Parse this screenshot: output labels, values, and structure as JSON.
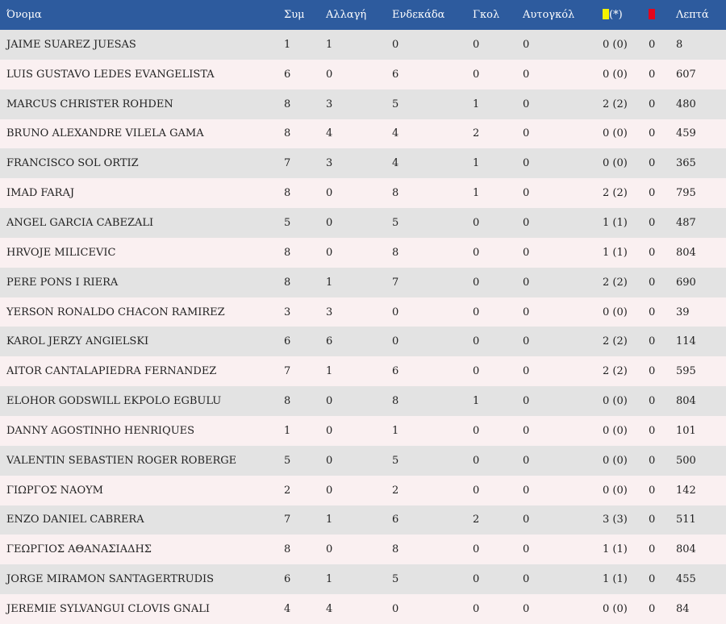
{
  "colors": {
    "header_bg": "#2d5b9e",
    "row_odd": "#e3e3e3",
    "row_even": "#faf0f1",
    "yellow_card": "#f5f200",
    "red_card": "#e3061c"
  },
  "headers": {
    "name": "Όνομα",
    "apps": "Συμ",
    "subs": "Αλλαγή",
    "starts": "Ενδεκάδα",
    "goals": "Γκολ",
    "own_goals": "Αυτογκόλ",
    "yellow_suffix": "(*)",
    "minutes": "Λεπτά"
  },
  "icons": {
    "yellow": "yellow-card-icon",
    "red": "red-card-icon"
  },
  "rows": [
    {
      "name": "JAIME SUAREZ JUESAS",
      "apps": "1",
      "subs": "1",
      "starts": "0",
      "goals": "0",
      "own": "0",
      "yellow": "0 (0)",
      "red": "0",
      "mins": "8"
    },
    {
      "name": "LUIS GUSTAVO LEDES EVANGELISTA",
      "apps": "6",
      "subs": "0",
      "starts": "6",
      "goals": "0",
      "own": "0",
      "yellow": "0 (0)",
      "red": "0",
      "mins": "607"
    },
    {
      "name": "MARCUS CHRISTER ROHDEN",
      "apps": "8",
      "subs": "3",
      "starts": "5",
      "goals": "1",
      "own": "0",
      "yellow": "2 (2)",
      "red": "0",
      "mins": "480"
    },
    {
      "name": "BRUNO ALEXANDRE VILELA GAMA",
      "apps": "8",
      "subs": "4",
      "starts": "4",
      "goals": "2",
      "own": "0",
      "yellow": "0 (0)",
      "red": "0",
      "mins": "459"
    },
    {
      "name": "FRANCISCO SOL ORTIZ",
      "apps": "7",
      "subs": "3",
      "starts": "4",
      "goals": "1",
      "own": "0",
      "yellow": "0 (0)",
      "red": "0",
      "mins": "365"
    },
    {
      "name": "IMAD FARAJ",
      "apps": "8",
      "subs": "0",
      "starts": "8",
      "goals": "1",
      "own": "0",
      "yellow": "2 (2)",
      "red": "0",
      "mins": "795"
    },
    {
      "name": "ANGEL GARCIA CABEZALI",
      "apps": "5",
      "subs": "0",
      "starts": "5",
      "goals": "0",
      "own": "0",
      "yellow": "1 (1)",
      "red": "0",
      "mins": "487"
    },
    {
      "name": "HRVOJE MILICEVIC",
      "apps": "8",
      "subs": "0",
      "starts": "8",
      "goals": "0",
      "own": "0",
      "yellow": "1 (1)",
      "red": "0",
      "mins": "804"
    },
    {
      "name": "PERE PONS I RIERA",
      "apps": "8",
      "subs": "1",
      "starts": "7",
      "goals": "0",
      "own": "0",
      "yellow": "2 (2)",
      "red": "0",
      "mins": "690"
    },
    {
      "name": "YERSON RONALDO CHACON RAMIREZ",
      "apps": "3",
      "subs": "3",
      "starts": "0",
      "goals": "0",
      "own": "0",
      "yellow": "0 (0)",
      "red": "0",
      "mins": "39"
    },
    {
      "name": "KAROL JERZY ANGIELSKI",
      "apps": "6",
      "subs": "6",
      "starts": "0",
      "goals": "0",
      "own": "0",
      "yellow": "2 (2)",
      "red": "0",
      "mins": "114"
    },
    {
      "name": "AITOR CANTALAPIEDRA FERNANDEZ",
      "apps": "7",
      "subs": "1",
      "starts": "6",
      "goals": "0",
      "own": "0",
      "yellow": "2 (2)",
      "red": "0",
      "mins": "595"
    },
    {
      "name": "ELOHOR GODSWILL EKPOLO EGBULU",
      "apps": "8",
      "subs": "0",
      "starts": "8",
      "goals": "1",
      "own": "0",
      "yellow": "0 (0)",
      "red": "0",
      "mins": "804"
    },
    {
      "name": "DANNY AGOSTINHO HENRIQUES",
      "apps": "1",
      "subs": "0",
      "starts": "1",
      "goals": "0",
      "own": "0",
      "yellow": "0 (0)",
      "red": "0",
      "mins": "101"
    },
    {
      "name": "VALENTIN SEBASTIEN ROGER ROBERGE",
      "apps": "5",
      "subs": "0",
      "starts": "5",
      "goals": "0",
      "own": "0",
      "yellow": "0 (0)",
      "red": "0",
      "mins": "500"
    },
    {
      "name": "ΓΙΩΡΓΟΣ ΝΑΟΥΜ",
      "apps": "2",
      "subs": "0",
      "starts": "2",
      "goals": "0",
      "own": "0",
      "yellow": "0 (0)",
      "red": "0",
      "mins": "142"
    },
    {
      "name": "ENZO DANIEL CABRERA",
      "apps": "7",
      "subs": "1",
      "starts": "6",
      "goals": "2",
      "own": "0",
      "yellow": "3 (3)",
      "red": "0",
      "mins": "511"
    },
    {
      "name": "ΓΕΩΡΓΙΟΣ ΑΘΑΝΑΣΙΑΔΗΣ",
      "apps": "8",
      "subs": "0",
      "starts": "8",
      "goals": "0",
      "own": "0",
      "yellow": "1 (1)",
      "red": "0",
      "mins": "804"
    },
    {
      "name": "JORGE MIRAMON SANTAGERTRUDIS",
      "apps": "6",
      "subs": "1",
      "starts": "5",
      "goals": "0",
      "own": "0",
      "yellow": "1 (1)",
      "red": "0",
      "mins": "455"
    },
    {
      "name": "JEREMIE SYLVANGUI CLOVIS GNALI",
      "apps": "4",
      "subs": "4",
      "starts": "0",
      "goals": "0",
      "own": "0",
      "yellow": "0 (0)",
      "red": "0",
      "mins": "84"
    }
  ]
}
